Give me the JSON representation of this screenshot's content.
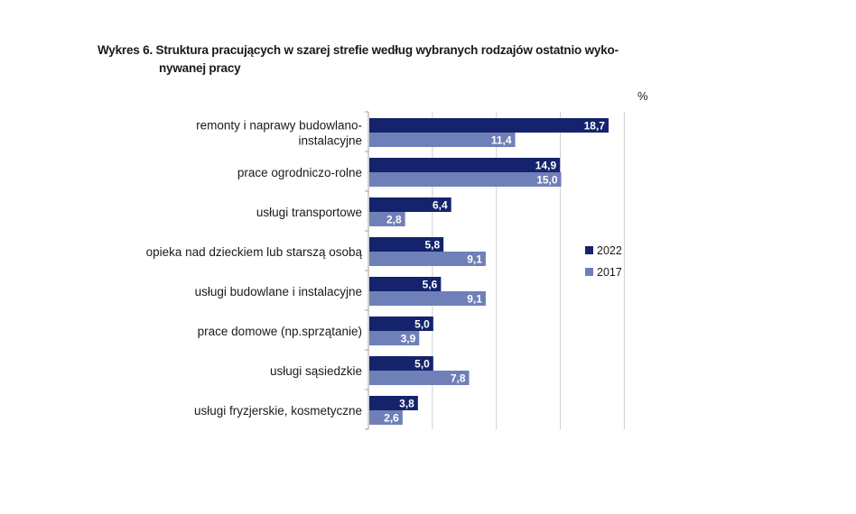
{
  "chart_title": {
    "line1": "Wykres 6. Struktura pracujących w szarej strefie według wybranych rodzajów ostatnio wyko-",
    "line2": "nywanej pracy"
  },
  "unit_label": "%",
  "colors": {
    "2022": "#14236b",
    "2017": "#6f7fb8",
    "grid": "#d0d0d0",
    "axis": "#a0a0a0"
  },
  "chart_data": {
    "type": "bar",
    "orientation": "horizontal",
    "categories": [
      [
        "remonty i naprawy budowlano-",
        "instalacyjne"
      ],
      [
        "prace ogrodniczo-rolne"
      ],
      [
        "usługi transportowe"
      ],
      [
        "opieka nad dzieckiem lub starszą osobą"
      ],
      [
        "usługi budowlane i instalacyjne"
      ],
      [
        "prace domowe  (np.sprzątanie)"
      ],
      [
        "usługi sąsiedzkie"
      ],
      [
        "usługi fryzjerskie, kosmetyczne"
      ]
    ],
    "series": [
      {
        "name": "2022",
        "values": [
          18.7,
          14.9,
          6.4,
          5.8,
          5.6,
          5.0,
          5.0,
          3.8
        ],
        "labels": [
          "18,7",
          "14,9",
          "6,4",
          "5,8",
          "5,6",
          "5,0",
          "5,0",
          "3,8"
        ]
      },
      {
        "name": "2017",
        "values": [
          11.4,
          15.0,
          2.8,
          9.1,
          9.1,
          3.9,
          7.8,
          2.6
        ],
        "labels": [
          "11,4",
          "15,0",
          "2,8",
          "9,1",
          "9,1",
          "3,9",
          "7,8",
          "2,6"
        ]
      }
    ],
    "xlim": [
      0,
      20
    ],
    "grid": true,
    "legend": "right"
  }
}
